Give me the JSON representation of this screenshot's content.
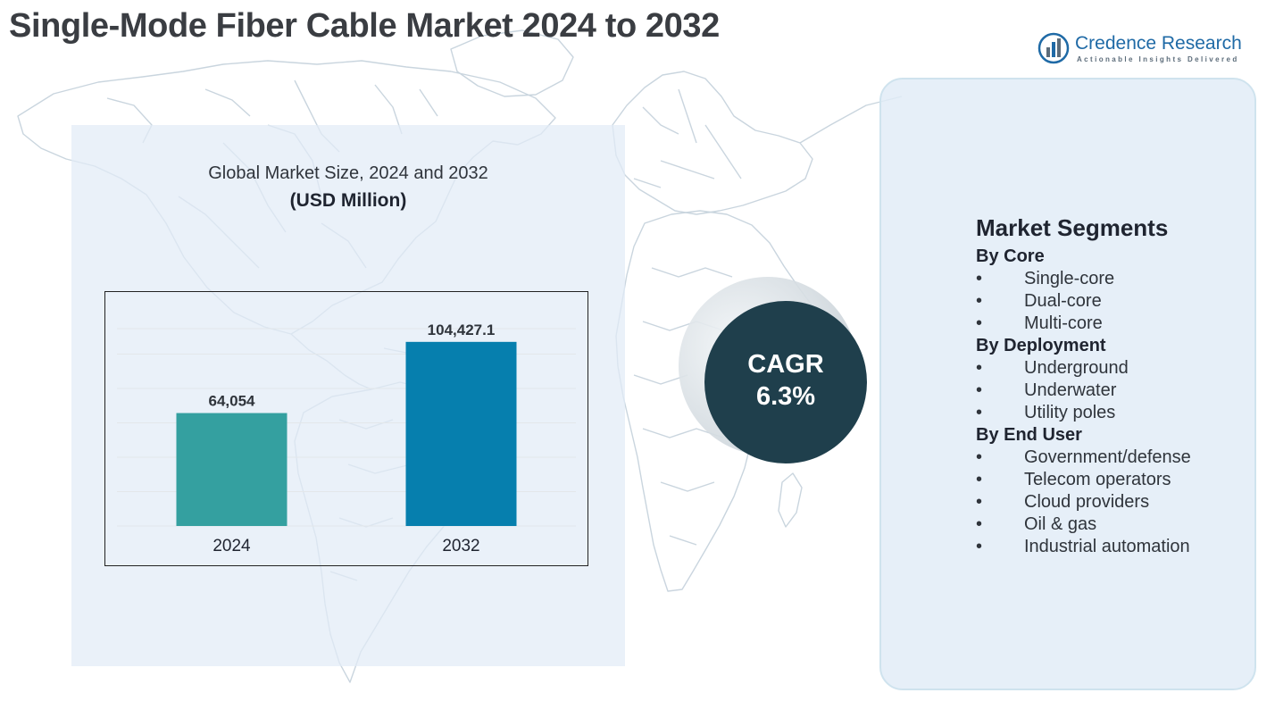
{
  "title": "Single-Mode Fiber Cable Market 2024 to 2032",
  "brand": {
    "name": "Credence Research",
    "tagline": "Actionable Insights Delivered",
    "color": "#1f6aa6"
  },
  "chart": {
    "subtitle": "Global Market Size, 2024 and 2032",
    "unit": "(USD Million)"
  },
  "chart_data": {
    "type": "bar",
    "categories": [
      "2024",
      "2032"
    ],
    "values": [
      64054,
      104427.1
    ],
    "value_labels": [
      "64,054",
      "104,427.1"
    ],
    "colors": [
      "#34a0a0",
      "#067fae"
    ],
    "title": "Global Market Size, 2024 and 2032",
    "ylabel": "(USD Million)",
    "xlabel": "",
    "ylim": [
      0,
      117000
    ],
    "grid": true
  },
  "cagr": {
    "label": "CAGR",
    "value": "6.3%"
  },
  "segments": {
    "heading": "Market Segments",
    "groups": [
      {
        "title": "By Core",
        "items": [
          "Single-core",
          "Dual-core",
          "Multi-core"
        ]
      },
      {
        "title": "By Deployment",
        "items": [
          "Underground",
          "Underwater",
          "Utility poles"
        ]
      },
      {
        "title": "By End User",
        "items": [
          "Government/defense",
          "Telecom operators",
          "Cloud providers",
          "Oil & gas",
          "Industrial automation"
        ]
      }
    ]
  }
}
